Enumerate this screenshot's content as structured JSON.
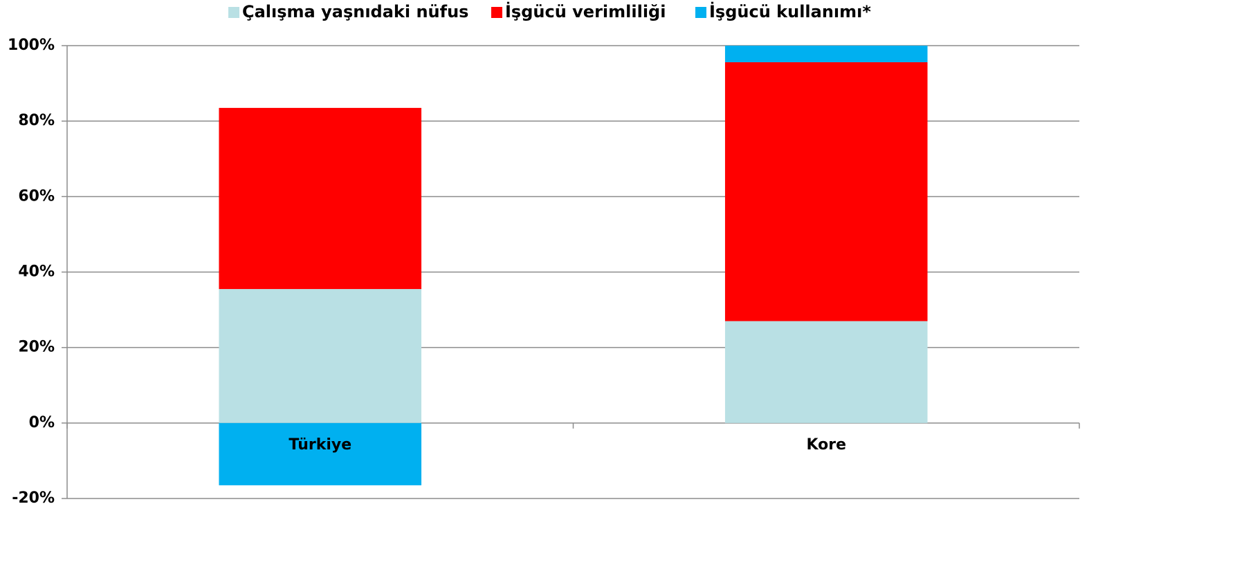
{
  "chart_data": {
    "type": "stacked_bar",
    "categories": [
      "Türkiye",
      "Kore"
    ],
    "series": [
      {
        "name": "Çalışma yaşnıdaki nüfus",
        "color": "#b9e0e4",
        "values": [
          35.5,
          27
        ]
      },
      {
        "name": "İşgücü verimliliği",
        "color": "#ff0000",
        "values": [
          48,
          68.6
        ]
      },
      {
        "name": "İşgücü kullanımı*",
        "color": "#00b0f0",
        "values": [
          -16.5,
          4.4
        ]
      }
    ],
    "ylim": [
      -20,
      100
    ],
    "yticks": [
      {
        "value": -20,
        "label": "-20%"
      },
      {
        "value": 0,
        "label": "0%"
      },
      {
        "value": 20,
        "label": "20%"
      },
      {
        "value": 40,
        "label": "40%"
      },
      {
        "value": 60,
        "label": "60%"
      },
      {
        "value": 80,
        "label": "80%"
      },
      {
        "value": 100,
        "label": "100%"
      }
    ],
    "grid": true,
    "legend": "top"
  }
}
